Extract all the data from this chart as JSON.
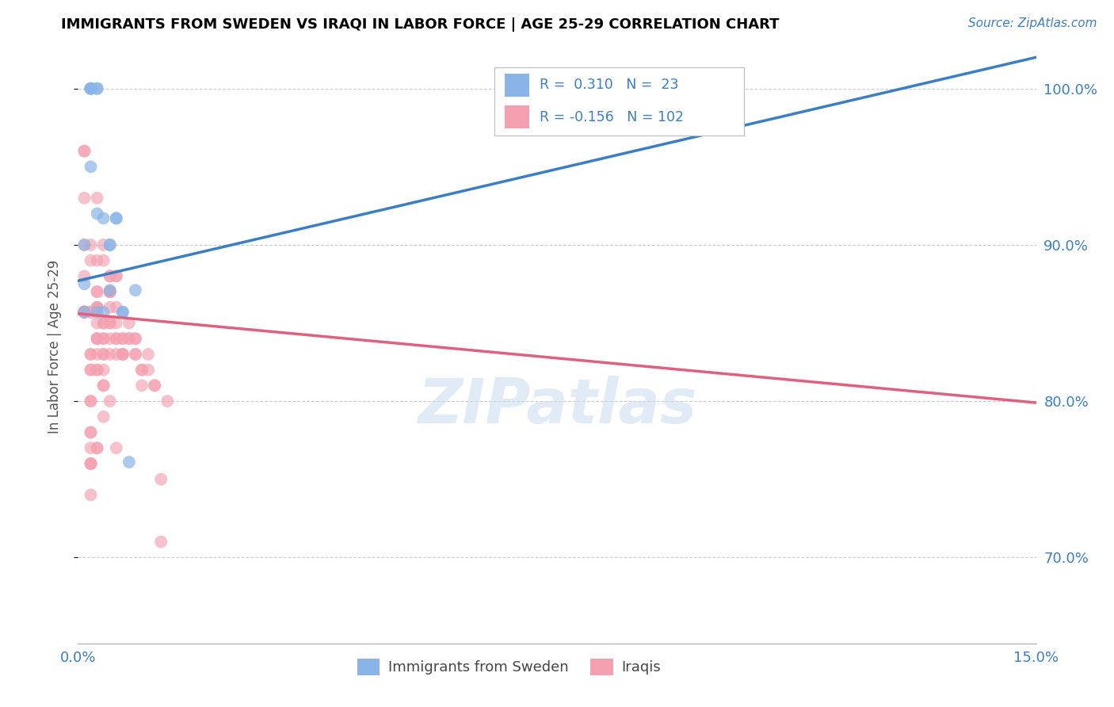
{
  "title": "IMMIGRANTS FROM SWEDEN VS IRAQI IN LABOR FORCE | AGE 25-29 CORRELATION CHART",
  "source": "Source: ZipAtlas.com",
  "ylabel": "In Labor Force | Age 25-29",
  "yticks": [
    0.7,
    0.8,
    0.9,
    1.0
  ],
  "ytick_labels": [
    "70.0%",
    "80.0%",
    "90.0%",
    "100.0%"
  ],
  "xmin": 0.0,
  "xmax": 0.15,
  "ymin": 0.645,
  "ymax": 1.025,
  "legend_r_sweden": "0.310",
  "legend_n_sweden": "23",
  "legend_r_iraqi": "-0.156",
  "legend_n_iraqi": "102",
  "color_sweden": "#8ab4e8",
  "color_iraqi": "#f4a0b0",
  "line_color_sweden": "#3a7ec8",
  "line_color_iraqi": "#e06080",
  "watermark": "ZIPatlas",
  "sweden_trendline": [
    0.0,
    0.877,
    0.15,
    1.02
  ],
  "iraqi_trendline": [
    0.0,
    0.856,
    0.15,
    0.799
  ],
  "sweden_x": [
    0.001,
    0.001,
    0.001,
    0.002,
    0.002,
    0.002,
    0.002,
    0.002,
    0.003,
    0.003,
    0.003,
    0.004,
    0.004,
    0.005,
    0.005,
    0.005,
    0.006,
    0.006,
    0.007,
    0.007,
    0.008,
    0.009,
    0.003
  ],
  "sweden_y": [
    0.9,
    0.875,
    0.857,
    1.0,
    1.0,
    1.0,
    1.0,
    0.95,
    1.0,
    1.0,
    0.92,
    0.917,
    0.857,
    0.9,
    0.9,
    0.871,
    0.917,
    0.917,
    0.857,
    0.857,
    0.761,
    0.871,
    0.857
  ],
  "iraqi_x": [
    0.001,
    0.001,
    0.001,
    0.001,
    0.001,
    0.001,
    0.001,
    0.001,
    0.001,
    0.001,
    0.001,
    0.001,
    0.001,
    0.001,
    0.001,
    0.002,
    0.002,
    0.002,
    0.002,
    0.002,
    0.002,
    0.002,
    0.002,
    0.002,
    0.002,
    0.002,
    0.002,
    0.002,
    0.002,
    0.002,
    0.003,
    0.003,
    0.003,
    0.003,
    0.003,
    0.003,
    0.003,
    0.003,
    0.003,
    0.003,
    0.003,
    0.003,
    0.003,
    0.003,
    0.004,
    0.004,
    0.004,
    0.004,
    0.004,
    0.004,
    0.004,
    0.004,
    0.004,
    0.004,
    0.005,
    0.005,
    0.005,
    0.005,
    0.005,
    0.005,
    0.005,
    0.005,
    0.005,
    0.005,
    0.006,
    0.006,
    0.006,
    0.006,
    0.006,
    0.006,
    0.006,
    0.007,
    0.007,
    0.007,
    0.007,
    0.008,
    0.008,
    0.008,
    0.009,
    0.009,
    0.009,
    0.009,
    0.01,
    0.01,
    0.01,
    0.011,
    0.011,
    0.012,
    0.012,
    0.013,
    0.013,
    0.014,
    0.002,
    0.002,
    0.003,
    0.003,
    0.004,
    0.004,
    0.005,
    0.005,
    0.006,
    0.007
  ],
  "iraqi_y": [
    0.96,
    0.96,
    0.93,
    0.9,
    0.88,
    0.857,
    0.857,
    0.857,
    0.857,
    0.857,
    0.857,
    0.857,
    0.857,
    0.857,
    0.857,
    0.9,
    0.89,
    0.857,
    0.857,
    0.83,
    0.83,
    0.82,
    0.82,
    0.8,
    0.8,
    0.78,
    0.78,
    0.76,
    0.76,
    0.74,
    0.93,
    0.89,
    0.87,
    0.87,
    0.86,
    0.86,
    0.86,
    0.85,
    0.84,
    0.84,
    0.82,
    0.82,
    0.77,
    0.77,
    0.9,
    0.89,
    0.85,
    0.85,
    0.84,
    0.83,
    0.82,
    0.81,
    0.81,
    0.79,
    0.88,
    0.88,
    0.87,
    0.87,
    0.87,
    0.87,
    0.86,
    0.85,
    0.85,
    0.84,
    0.88,
    0.88,
    0.86,
    0.85,
    0.84,
    0.84,
    0.83,
    0.84,
    0.84,
    0.83,
    0.83,
    0.85,
    0.84,
    0.84,
    0.84,
    0.84,
    0.83,
    0.83,
    0.82,
    0.82,
    0.81,
    0.83,
    0.82,
    0.81,
    0.81,
    0.75,
    0.71,
    0.8,
    0.76,
    0.77,
    0.83,
    0.84,
    0.83,
    0.84,
    0.83,
    0.8,
    0.77,
    0.83
  ]
}
